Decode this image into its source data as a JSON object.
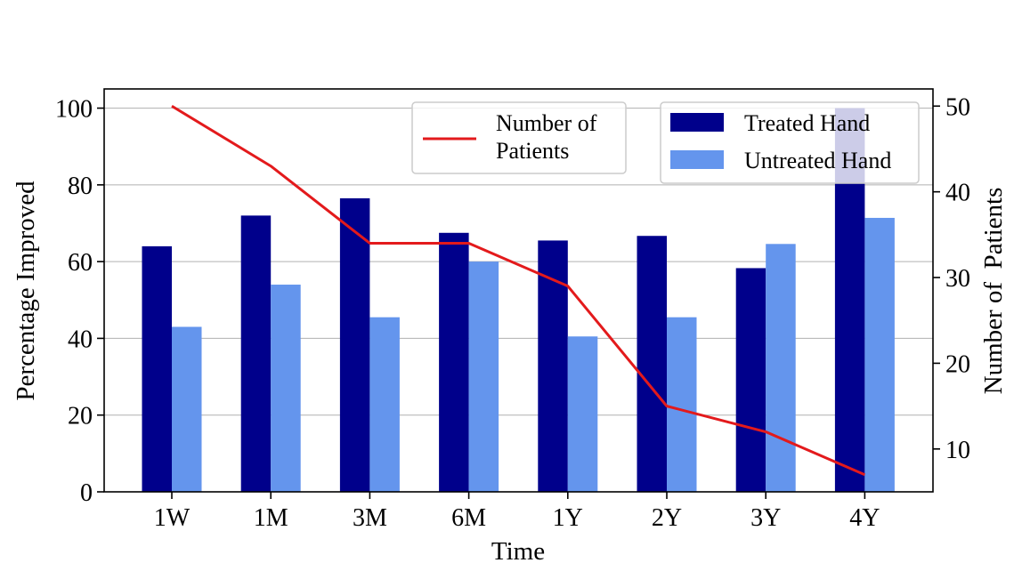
{
  "chart_data": {
    "type": "bar",
    "categories": [
      "1W",
      "1M",
      "3M",
      "6M",
      "1Y",
      "2Y",
      "3Y",
      "4Y"
    ],
    "series": [
      {
        "name": "Treated Hand",
        "values": [
          64.0,
          72.0,
          76.5,
          67.5,
          65.5,
          66.7,
          58.3,
          100.0
        ],
        "color": "#00008b"
      },
      {
        "name": "Untreated Hand",
        "values": [
          43.0,
          54.0,
          45.5,
          60.0,
          40.5,
          45.5,
          64.6,
          71.4
        ],
        "color": "#6495ed"
      }
    ],
    "line_series": {
      "name_lines": [
        "Number of",
        "Patients"
      ],
      "axis": "right",
      "values": [
        50,
        43,
        34,
        34,
        29,
        15,
        12,
        7
      ],
      "color": "#e31a1c"
    },
    "xlabel": "Time",
    "ylabel": "Percentage Improved",
    "y2label": "Number of  Patients",
    "ylim": [
      0,
      105
    ],
    "y2lim": [
      5,
      52
    ],
    "yticks": [
      0,
      20,
      40,
      60,
      80,
      100
    ],
    "y2ticks": [
      10,
      20,
      30,
      40,
      50
    ],
    "grid": "y-major",
    "legend_positions": [
      "upper center",
      "upper right"
    ]
  }
}
